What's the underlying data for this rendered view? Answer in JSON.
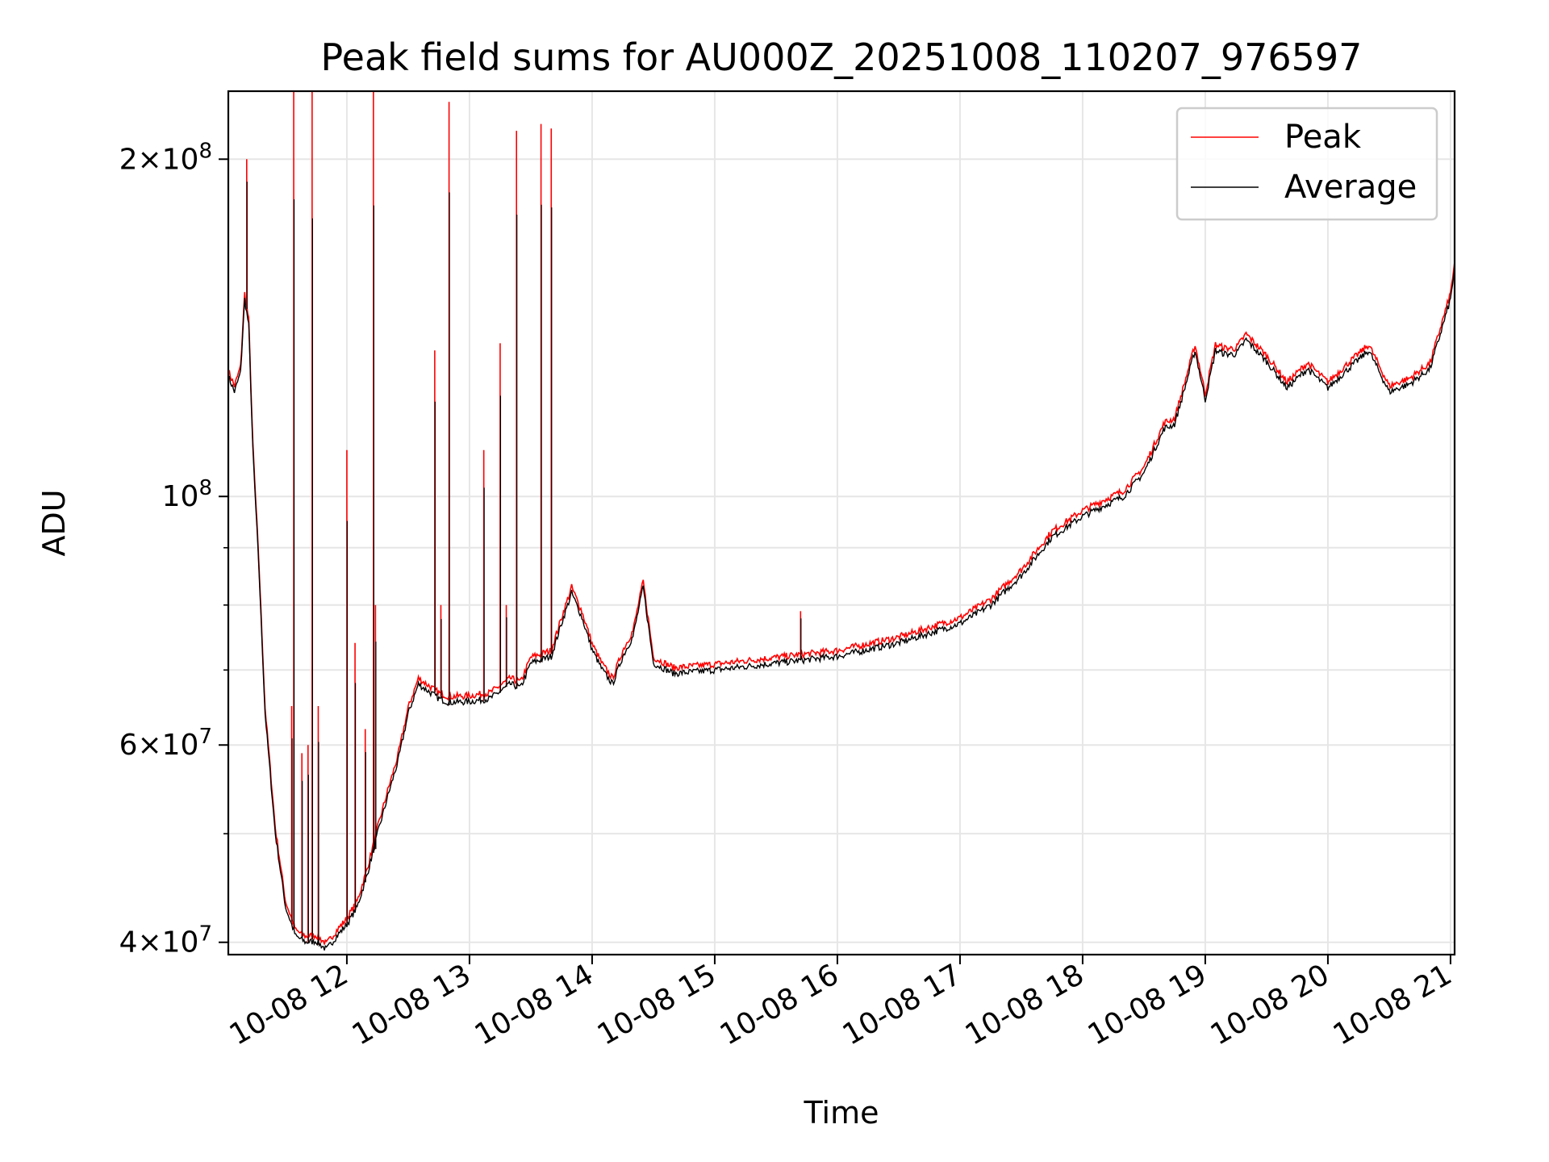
{
  "chart_data": {
    "type": "line",
    "title": "Peak field sums for AU000Z_20251008_110207_976597",
    "xlabel": "Time",
    "ylabel": "ADU",
    "yscale": "log",
    "ylim": [
      39000000,
      230000000
    ],
    "xlim": [
      "2025-10-08 11:02",
      "2025-10-08 21:02"
    ],
    "grid": true,
    "legend": {
      "placement": "top-right",
      "entries": [
        "Peak",
        "Average"
      ]
    },
    "x_ticks": [
      "10-08 12",
      "10-08 13",
      "10-08 14",
      "10-08 15",
      "10-08 16",
      "10-08 17",
      "10-08 18",
      "10-08 19",
      "10-08 20",
      "10-08 21"
    ],
    "y_ticks": [
      {
        "base": "4",
        "exp": "7"
      },
      {
        "base": "6",
        "exp": "7"
      },
      {
        "base": "",
        "exp": "8"
      },
      {
        "base": "2",
        "exp": "8"
      }
    ],
    "series": [
      {
        "name": "Average",
        "color": "#000000"
      },
      {
        "name": "Peak",
        "color": "#ff0000"
      }
    ],
    "x": [
      "11:02",
      "11:05",
      "11:08",
      "11:10",
      "11:12",
      "11:14",
      "11:17",
      "11:20",
      "11:25",
      "11:30",
      "11:35",
      "11:40",
      "11:45",
      "11:50",
      "11:55",
      "12:00",
      "12:05",
      "12:10",
      "12:15",
      "12:20",
      "12:25",
      "12:30",
      "12:35",
      "12:40",
      "12:45",
      "12:50",
      "13:00",
      "13:10",
      "13:20",
      "13:25",
      "13:30",
      "13:40",
      "13:45",
      "13:50",
      "13:55",
      "14:00",
      "14:05",
      "14:10",
      "14:15",
      "14:20",
      "14:25",
      "14:30",
      "14:40",
      "15:00",
      "15:30",
      "16:00",
      "16:30",
      "17:00",
      "17:15",
      "17:30",
      "17:45",
      "18:00",
      "18:10",
      "18:20",
      "18:30",
      "18:40",
      "18:45",
      "18:50",
      "18:55",
      "19:00",
      "19:05",
      "19:10",
      "19:15",
      "19:20",
      "19:30",
      "19:40",
      "19:50",
      "20:00",
      "20:10",
      "20:20",
      "20:30",
      "20:40",
      "20:50",
      "21:00",
      "21:02"
    ],
    "average": [
      128000000,
      124000000,
      129000000,
      150000000,
      142000000,
      110000000,
      86000000,
      64000000,
      50000000,
      43000000,
      40500000,
      40000000,
      40100000,
      39400000,
      40500000,
      41500000,
      43000000,
      46000000,
      50000000,
      54000000,
      58000000,
      64000000,
      68000000,
      67000000,
      66000000,
      65500000,
      65600000,
      66000000,
      68000000,
      67500000,
      71000000,
      72000000,
      77000000,
      82000000,
      78000000,
      73000000,
      70000000,
      68000000,
      72000000,
      75000000,
      83000000,
      71000000,
      69500000,
      70000000,
      71000000,
      72000000,
      74000000,
      77000000,
      80000000,
      85000000,
      92000000,
      96000000,
      98000000,
      100000000,
      105000000,
      115000000,
      116000000,
      125000000,
      135000000,
      122000000,
      135000000,
      134000000,
      134000000,
      138000000,
      132000000,
      125000000,
      130000000,
      125000000,
      130000000,
      135000000,
      124000000,
      126000000,
      130000000,
      150000000,
      160000000
    ],
    "peak_spikes": [
      {
        "x": "11:11",
        "value": 200000000
      },
      {
        "x": "11:33",
        "value": 65000000
      },
      {
        "x": "11:34",
        "value": 240000000
      },
      {
        "x": "11:38",
        "value": 59000000
      },
      {
        "x": "11:41",
        "value": 60000000
      },
      {
        "x": "11:43",
        "value": 230000000
      },
      {
        "x": "11:46",
        "value": 65000000
      },
      {
        "x": "12:00",
        "value": 110000000
      },
      {
        "x": "12:04",
        "value": 74000000
      },
      {
        "x": "12:09",
        "value": 62000000
      },
      {
        "x": "12:13",
        "value": 230000000
      },
      {
        "x": "12:14",
        "value": 80000000
      },
      {
        "x": "12:43",
        "value": 135000000
      },
      {
        "x": "12:46",
        "value": 80000000
      },
      {
        "x": "12:50",
        "value": 225000000
      },
      {
        "x": "13:07",
        "value": 110000000
      },
      {
        "x": "13:15",
        "value": 137000000
      },
      {
        "x": "13:18",
        "value": 80000000
      },
      {
        "x": "13:23",
        "value": 212000000
      },
      {
        "x": "13:35",
        "value": 215000000
      },
      {
        "x": "13:40",
        "value": 213000000
      },
      {
        "x": "15:42",
        "value": 79000000
      }
    ]
  }
}
